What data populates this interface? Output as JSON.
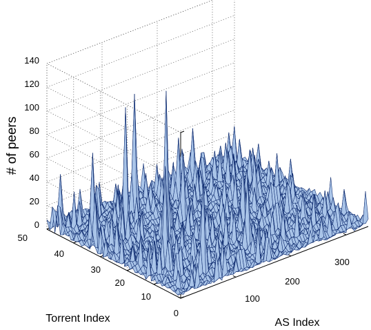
{
  "chart_data": {
    "type": "surface",
    "title": "",
    "xlabel": "AS Index",
    "ylabel": "Torrent Index",
    "zlabel": "# of peers",
    "xlim": [
      0,
      340
    ],
    "ylim": [
      0,
      50
    ],
    "zlim": [
      0,
      140
    ],
    "x_ticks": [
      "0",
      "100",
      "200",
      "300"
    ],
    "y_ticks": [
      "0",
      "10",
      "20",
      "30",
      "40",
      "50"
    ],
    "z_ticks": [
      "0",
      "20",
      "40",
      "60",
      "80",
      "100",
      "120",
      "140"
    ],
    "grid": true,
    "colormap": {
      "face": "#a9c4e8",
      "edge": "#0d2a6e"
    },
    "notable_peaks": [
      {
        "as_index": 90,
        "torrent_index": 24,
        "peers": 131
      },
      {
        "as_index": 58,
        "torrent_index": 33,
        "peers": 112
      },
      {
        "as_index": 120,
        "torrent_index": 42,
        "peers": 102
      },
      {
        "as_index": 40,
        "torrent_index": 14,
        "peers": 88
      },
      {
        "as_index": 22,
        "torrent_index": 37,
        "peers": 76
      },
      {
        "as_index": 70,
        "torrent_index": 6,
        "peers": 80
      },
      {
        "as_index": 8,
        "torrent_index": 47,
        "peers": 48
      },
      {
        "as_index": 6,
        "torrent_index": 33,
        "peers": 49
      },
      {
        "as_index": 150,
        "torrent_index": 30,
        "peers": 61
      },
      {
        "as_index": 170,
        "torrent_index": 10,
        "peers": 60
      },
      {
        "as_index": 190,
        "torrent_index": 40,
        "peers": 55
      },
      {
        "as_index": 210,
        "torrent_index": 20,
        "peers": 52
      },
      {
        "as_index": 245,
        "torrent_index": 46,
        "peers": 46
      },
      {
        "as_index": 270,
        "torrent_index": 28,
        "peers": 40
      },
      {
        "as_index": 300,
        "torrent_index": 36,
        "peers": 30
      },
      {
        "as_index": 325,
        "torrent_index": 12,
        "peers": 18
      }
    ]
  }
}
